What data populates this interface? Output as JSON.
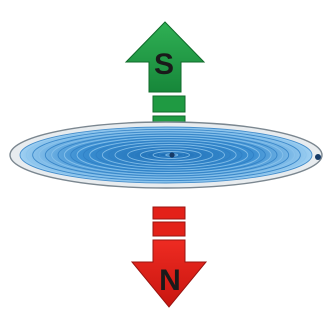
{
  "diagram": {
    "north_label": "N",
    "south_label": "S",
    "colors": {
      "south_arrow": "#1f9a42",
      "south_arrow_edge": "#0f6a2a",
      "north_arrow": "#e32119",
      "north_arrow_edge": "#9a1410",
      "disc_rim": "#e8ecef",
      "disc_rim_edge": "#7b8790",
      "coil": "#2f7fc4",
      "coil_light": "#8cc4ec"
    },
    "icons": {
      "coil": "spiral-coil-icon",
      "south_arrow": "arrow-up-icon",
      "north_arrow": "arrow-down-icon"
    }
  }
}
